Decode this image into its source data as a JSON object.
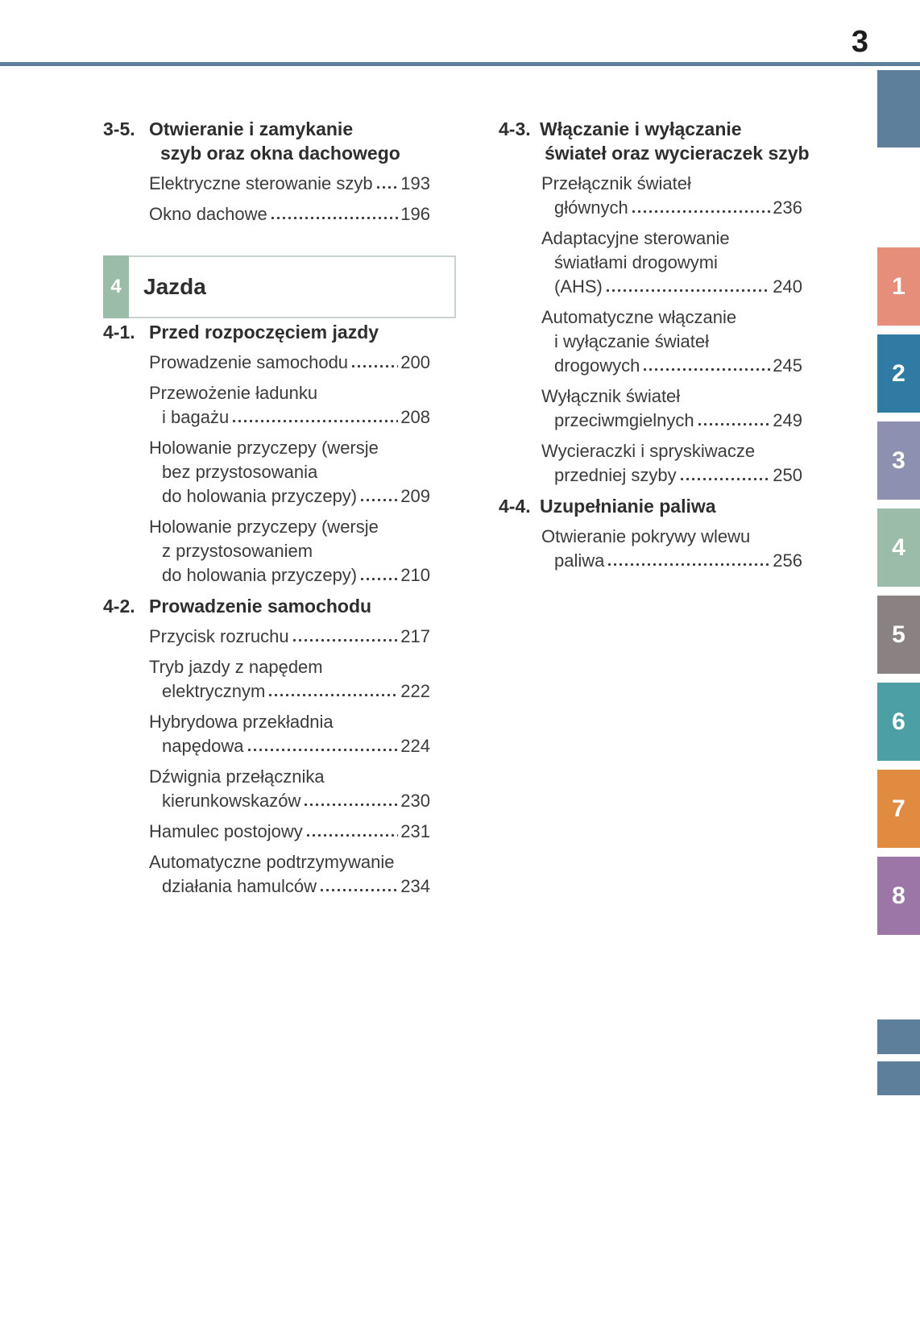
{
  "header": {
    "page_number": "3",
    "rule_color": "#5e7f9c"
  },
  "chapter_box": {
    "number": "4",
    "title": "Jazda",
    "tab_color": "#9bbca8"
  },
  "toc": {
    "left": [
      {
        "num": "3-5.",
        "title": [
          "Otwieranie i zamykanie",
          "szyb oraz okna dachowego"
        ],
        "entries": [
          {
            "last": "Elektryczne sterowanie szyb",
            "page": "193"
          },
          {
            "last": "Okno dachowe",
            "page": "196"
          }
        ]
      },
      {
        "num": "4-1.",
        "title": [
          "Przed rozpoczęciem jazdy"
        ],
        "entries": [
          {
            "last": "Prowadzenie samochodu",
            "page": "200"
          },
          {
            "pre": [
              "Przewożenie ładunku"
            ],
            "last": "i bagażu",
            "page": "208"
          },
          {
            "pre": [
              "Holowanie przyczepy (wersje",
              "bez przystosowania"
            ],
            "last": "do holowania przyczepy)",
            "page": "209"
          },
          {
            "pre": [
              "Holowanie przyczepy (wersje",
              "z przystosowaniem"
            ],
            "last": "do holowania przyczepy)",
            "page": "210"
          }
        ]
      },
      {
        "num": "4-2.",
        "title": [
          "Prowadzenie samochodu"
        ],
        "entries": [
          {
            "last": "Przycisk rozruchu",
            "page": "217"
          },
          {
            "pre": [
              "Tryb jazdy z napędem"
            ],
            "last": "elektrycznym",
            "page": "222"
          },
          {
            "pre": [
              "Hybrydowa przekładnia"
            ],
            "last": "napędowa",
            "page": "224"
          },
          {
            "pre": [
              "Dźwignia przełącznika"
            ],
            "last": "kierunkowskazów",
            "page": "230"
          },
          {
            "last": "Hamulec postojowy",
            "page": "231"
          },
          {
            "pre": [
              "Automatyczne podtrzymywanie"
            ],
            "last": "działania hamulców",
            "page": "234"
          }
        ]
      }
    ],
    "right": [
      {
        "num": "4-3.",
        "title": [
          "Włączanie i wyłączanie",
          "świateł oraz wycieraczek szyb"
        ],
        "entries": [
          {
            "pre": [
              "Przełącznik świateł"
            ],
            "last": "głównych",
            "page": "236"
          },
          {
            "pre": [
              "Adaptacyjne sterowanie",
              "światłami drogowymi"
            ],
            "last": "(AHS)",
            "page": "240"
          },
          {
            "pre": [
              "Automatyczne włączanie",
              "i wyłączanie świateł"
            ],
            "last": "drogowych",
            "page": "245"
          },
          {
            "pre": [
              "Wyłącznik świateł"
            ],
            "last": "przeciwmgielnych",
            "page": "249"
          },
          {
            "pre": [
              "Wycieraczki i spryskiwacze"
            ],
            "last": "przedniej szyby",
            "page": "250"
          }
        ]
      },
      {
        "num": "4-4.",
        "title": [
          "Uzupełnianie paliwa"
        ],
        "entries": [
          {
            "pre": [
              "Otwieranie pokrywy wlewu"
            ],
            "last": "paliwa",
            "page": "256"
          }
        ]
      }
    ]
  },
  "side_tabs": {
    "plain_color": "#5e7f9c",
    "tabs": [
      {
        "label": "1",
        "color": "#e78e7b"
      },
      {
        "label": "2",
        "color": "#2f7ba4"
      },
      {
        "label": "3",
        "color": "#8e90b2"
      },
      {
        "label": "4",
        "color": "#9bbca8"
      },
      {
        "label": "5",
        "color": "#8a8182"
      },
      {
        "label": "6",
        "color": "#4d9fa6"
      },
      {
        "label": "7",
        "color": "#e18b41"
      },
      {
        "label": "8",
        "color": "#9b76a6"
      }
    ]
  }
}
